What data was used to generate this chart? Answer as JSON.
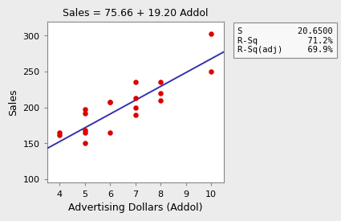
{
  "title": "Sales = 75.66 + 19.20 Addol",
  "xlabel": "Advertising Dollars (Addol)",
  "ylabel": "Sales",
  "scatter_x": [
    4,
    4,
    5,
    5,
    5,
    5,
    5,
    6,
    6,
    6,
    7,
    7,
    7,
    7,
    8,
    8,
    8,
    10,
    10
  ],
  "scatter_y": [
    162,
    165,
    150,
    165,
    168,
    192,
    197,
    165,
    207,
    208,
    190,
    200,
    213,
    235,
    210,
    220,
    235,
    250,
    303
  ],
  "scatter_color": "#dd0000",
  "line_color": "#3333aa",
  "intercept": 75.66,
  "slope": 19.2,
  "xlim": [
    3.5,
    10.5
  ],
  "ylim": [
    95,
    320
  ],
  "xticks": [
    4,
    5,
    6,
    7,
    8,
    9,
    10
  ],
  "yticks": [
    100,
    150,
    200,
    250,
    300
  ],
  "stats_S_label": "S",
  "stats_S_val": "20.6500",
  "stats_RSq_label": "R-Sq",
  "stats_RSq_val": "71.2%",
  "stats_RSqAdj_label": "R-Sq(adj)",
  "stats_RSqAdj_val": "69.9%",
  "bg_color": "#ececec",
  "plot_bg_color": "#ffffff",
  "title_fontsize": 9,
  "axis_label_fontsize": 9,
  "tick_fontsize": 8,
  "stats_fontsize": 7.5
}
